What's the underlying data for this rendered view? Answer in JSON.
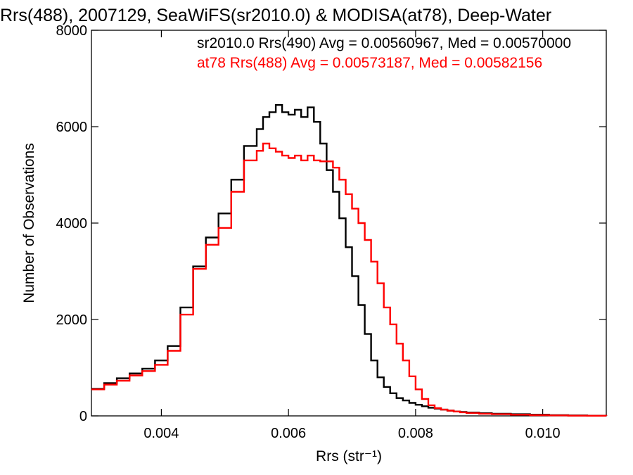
{
  "chart_data": {
    "type": "line",
    "title": "Rrs(488), 2007129, SeaWiFS(sr2010.0) & MODISA(at78), Deep-Water",
    "xlabel": "Rrs (str⁻¹)",
    "ylabel": "Number of Observations",
    "xlim": [
      0.0029,
      0.011
    ],
    "ylim": [
      0,
      8000
    ],
    "xticks": [
      0.004,
      0.006,
      0.008,
      0.01
    ],
    "xtick_labels": [
      "0.004",
      "0.006",
      "0.008",
      "0.010"
    ],
    "yticks": [
      0,
      2000,
      4000,
      6000,
      8000
    ],
    "ytick_labels": [
      "0",
      "2000",
      "4000",
      "6000",
      "8000"
    ],
    "grid": false,
    "legend_position": "top",
    "series": [
      {
        "label": "sr2010.0 Rrs(490) Avg = 0.00560967, Med = 0.00570000",
        "color": "#000000",
        "x": [
          0.0029,
          0.0031,
          0.0033,
          0.0035,
          0.0037,
          0.0039,
          0.0041,
          0.0043,
          0.0045,
          0.0047,
          0.0049,
          0.0051,
          0.0053,
          0.0055,
          0.0056,
          0.0057,
          0.0058,
          0.0059,
          0.006,
          0.0061,
          0.0062,
          0.0063,
          0.0064,
          0.0065,
          0.0066,
          0.0067,
          0.0068,
          0.0069,
          0.007,
          0.0071,
          0.0072,
          0.0073,
          0.0074,
          0.0075,
          0.0076,
          0.0077,
          0.0078,
          0.0079,
          0.008,
          0.0081,
          0.0082,
          0.0083,
          0.0084,
          0.0085,
          0.0086,
          0.0087,
          0.0088,
          0.009,
          0.0092,
          0.0095,
          0.0098,
          0.0101,
          0.0104,
          0.0107,
          0.011
        ],
        "y": [
          560,
          680,
          780,
          880,
          980,
          1150,
          1450,
          2250,
          3100,
          3700,
          4200,
          4900,
          5600,
          5950,
          6200,
          6300,
          6450,
          6300,
          6250,
          6350,
          6200,
          6400,
          6100,
          5650,
          5100,
          4650,
          4100,
          3500,
          2900,
          2300,
          1700,
          1150,
          800,
          600,
          470,
          370,
          320,
          270,
          230,
          200,
          170,
          150,
          130,
          110,
          90,
          80,
          70,
          55,
          45,
          35,
          25,
          15,
          10,
          5,
          0
        ]
      },
      {
        "label": "at78 Rrs(488) Avg = 0.00573187, Med = 0.00582156",
        "color": "#ff0000",
        "x": [
          0.0029,
          0.0031,
          0.0033,
          0.0035,
          0.0037,
          0.0039,
          0.0041,
          0.0043,
          0.0045,
          0.0047,
          0.0049,
          0.0051,
          0.0053,
          0.0055,
          0.0056,
          0.0057,
          0.0058,
          0.0059,
          0.006,
          0.0061,
          0.0062,
          0.0063,
          0.0064,
          0.0065,
          0.0066,
          0.0067,
          0.0068,
          0.0069,
          0.007,
          0.0071,
          0.0072,
          0.0073,
          0.0074,
          0.0075,
          0.0076,
          0.0077,
          0.0078,
          0.0079,
          0.008,
          0.0081,
          0.0082,
          0.0083,
          0.0084,
          0.0085,
          0.0086,
          0.0087,
          0.0088,
          0.009,
          0.0092,
          0.0095,
          0.0098,
          0.0101,
          0.0104,
          0.0107,
          0.011
        ],
        "y": [
          550,
          650,
          730,
          840,
          930,
          1060,
          1350,
          2100,
          3050,
          3550,
          3900,
          4650,
          5300,
          5500,
          5650,
          5550,
          5480,
          5400,
          5350,
          5400,
          5300,
          5400,
          5300,
          5280,
          5280,
          5150,
          4900,
          4600,
          4300,
          4000,
          3650,
          3200,
          2750,
          2250,
          1900,
          1500,
          1150,
          820,
          550,
          350,
          220,
          160,
          130,
          110,
          90,
          75,
          60,
          45,
          35,
          25,
          15,
          10,
          5,
          3,
          0
        ]
      }
    ]
  }
}
